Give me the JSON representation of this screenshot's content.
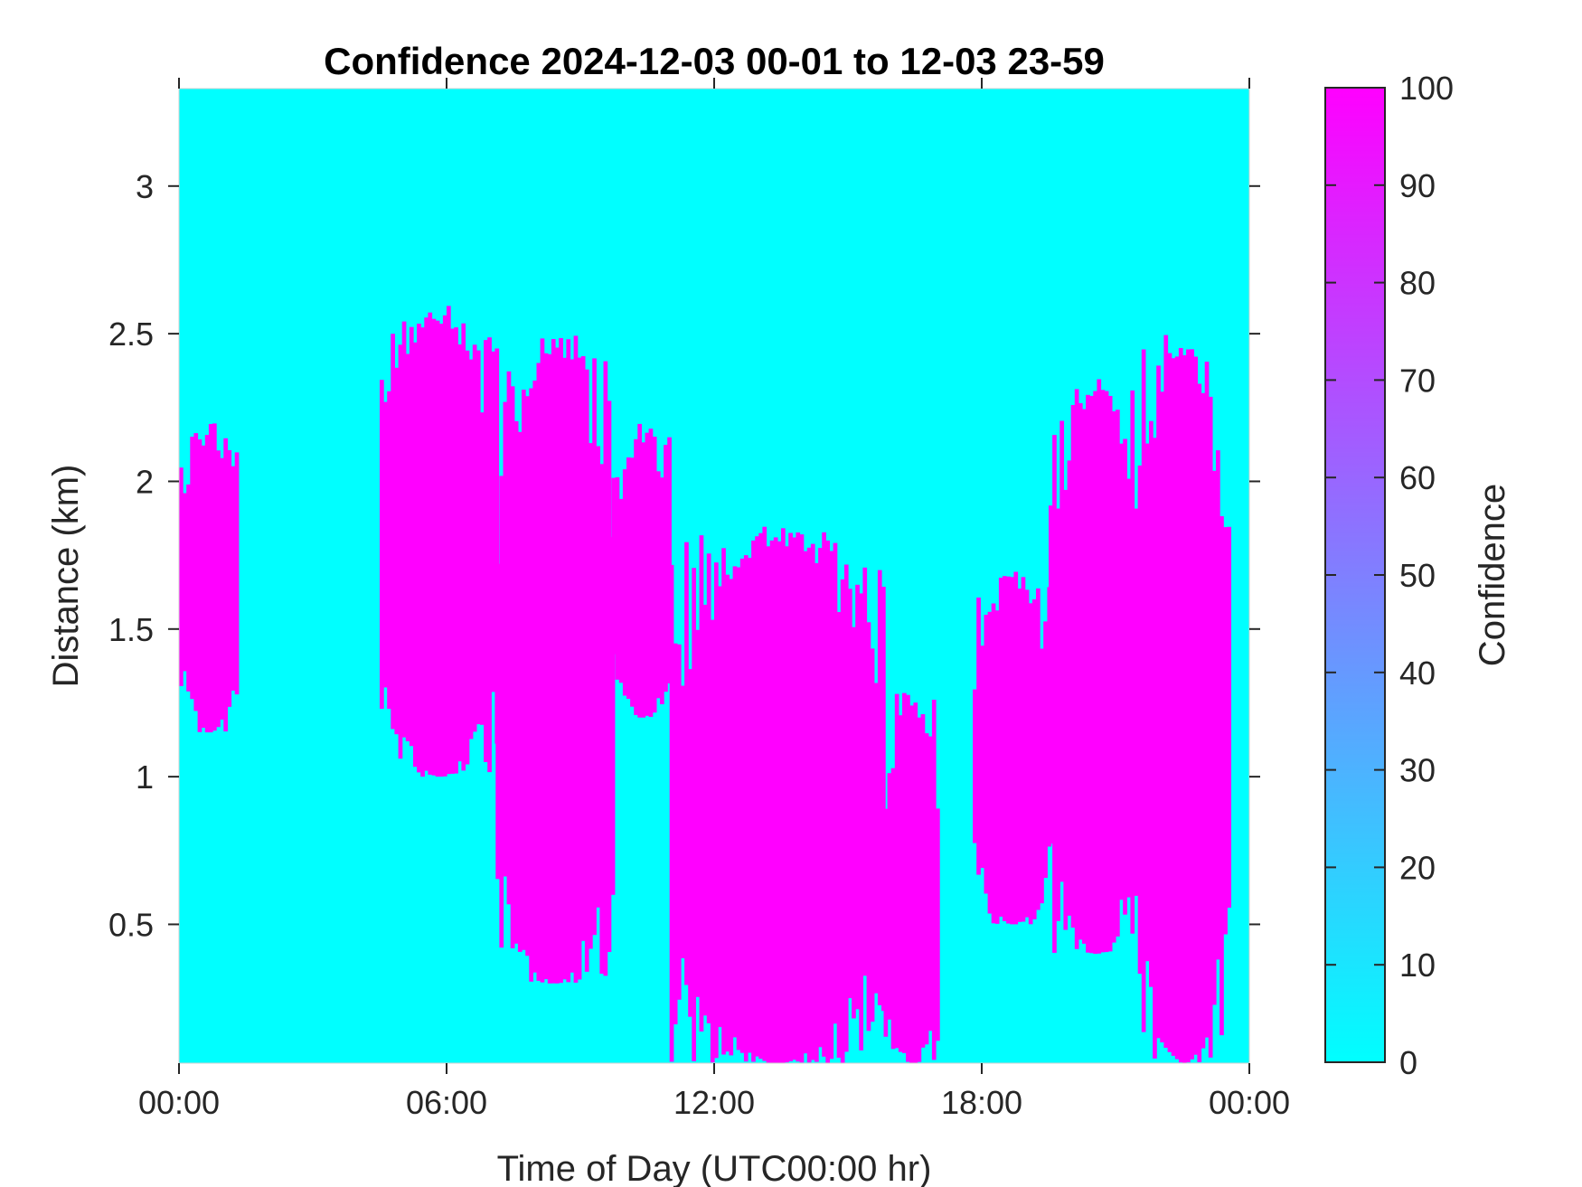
{
  "chart_data": {
    "type": "heatmap",
    "title": "Confidence 2024-12-03 00-01 to 12-03 23-59",
    "xlabel": "Time of Day (UTC00:00 hr)",
    "ylabel": "Distance (km)",
    "xlim_hours": [
      0,
      24
    ],
    "ylim_km": [
      0.03,
      3.33
    ],
    "x_ticks": [
      {
        "value": 0,
        "label": "00:00"
      },
      {
        "value": 6,
        "label": "06:00"
      },
      {
        "value": 12,
        "label": "12:00"
      },
      {
        "value": 18,
        "label": "18:00"
      },
      {
        "value": 24,
        "label": "00:00"
      }
    ],
    "y_ticks": [
      {
        "value": 0.5,
        "label": "0.5"
      },
      {
        "value": 1,
        "label": "1"
      },
      {
        "value": 1.5,
        "label": "1.5"
      },
      {
        "value": 2,
        "label": "2"
      },
      {
        "value": 2.5,
        "label": "2.5"
      },
      {
        "value": 3,
        "label": "3"
      }
    ],
    "colorbar": {
      "label": "Confidence",
      "range": [
        0,
        100
      ],
      "ticks": [
        "0",
        "10",
        "20",
        "30",
        "40",
        "50",
        "60",
        "70",
        "80",
        "90",
        "100"
      ],
      "color_low": "#00ffff",
      "color_high": "#ff00ff"
    },
    "background_value": 0,
    "high_confidence_value": 100,
    "high_confidence_regions_hours_km": [
      {
        "x": [
          0.0,
          1.3
        ],
        "y": [
          1.15,
          2.2
        ]
      },
      {
        "x": [
          4.5,
          7.1
        ],
        "y": [
          1.0,
          2.6
        ]
      },
      {
        "x": [
          7.1,
          9.7
        ],
        "y": [
          0.3,
          2.5
        ]
      },
      {
        "x": [
          9.7,
          11.0
        ],
        "y": [
          1.2,
          2.2
        ]
      },
      {
        "x": [
          11.0,
          15.8
        ],
        "y": [
          0.03,
          1.85
        ]
      },
      {
        "x": [
          15.8,
          17.0
        ],
        "y": [
          0.03,
          1.3
        ]
      },
      {
        "x": [
          17.8,
          19.5
        ],
        "y": [
          0.5,
          1.7
        ]
      },
      {
        "x": [
          19.5,
          21.5
        ],
        "y": [
          0.4,
          2.35
        ]
      },
      {
        "x": [
          21.5,
          23.5
        ],
        "y": [
          0.03,
          2.5
        ]
      }
    ]
  }
}
